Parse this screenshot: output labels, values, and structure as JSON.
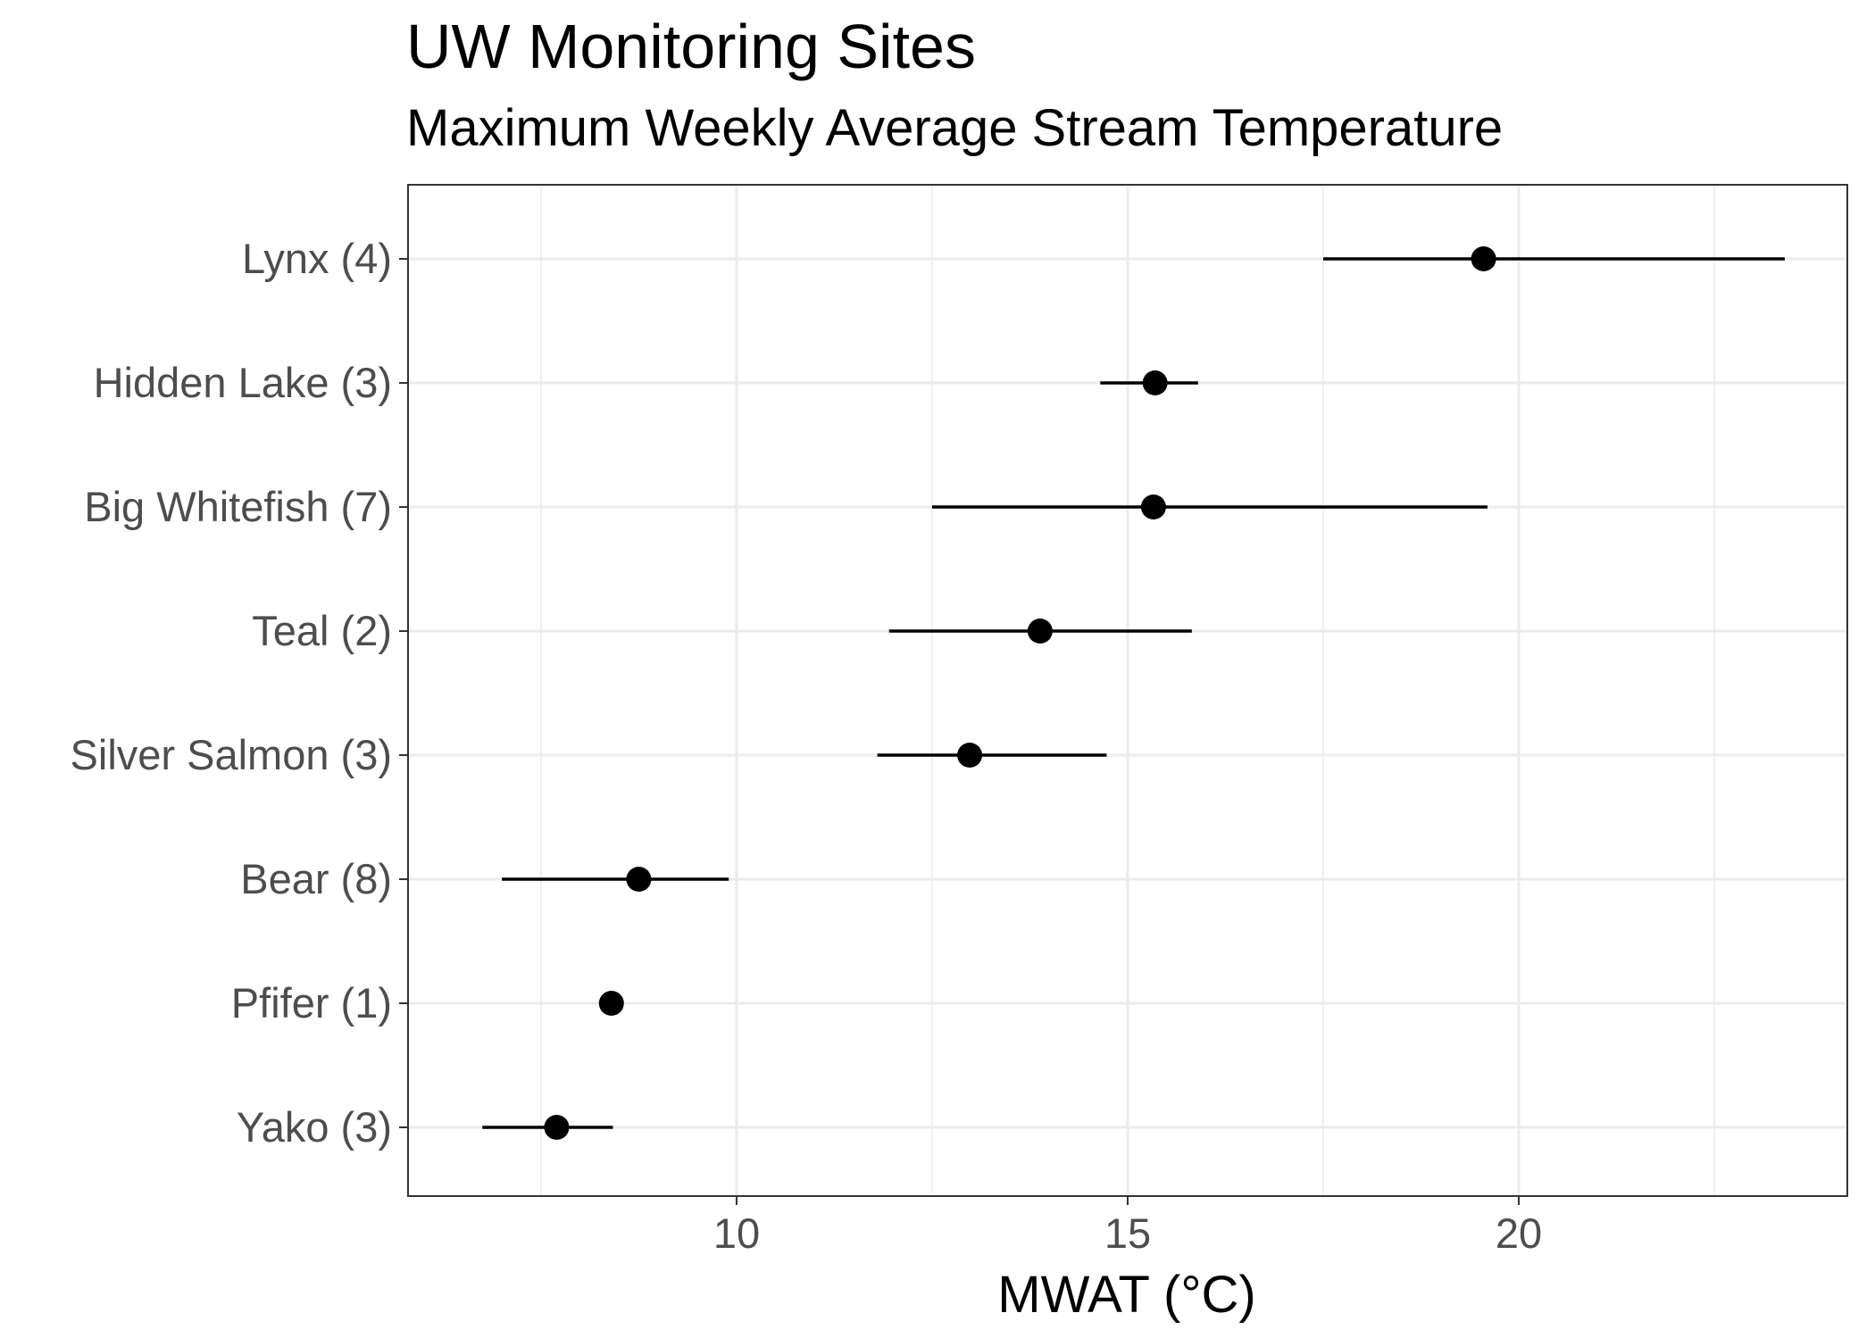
{
  "chart_data": {
    "type": "scatter",
    "title": "UW Monitoring Sites",
    "subtitle": "Maximum Weekly Average Stream Temperature",
    "xlabel": "MWAT (°C)",
    "ylabel": "",
    "xlim": [
      5.8,
      24.2
    ],
    "x_ticks": [
      10,
      15,
      20
    ],
    "grid": true,
    "legend": "none",
    "categories": [
      "Lynx (4)",
      "Hidden Lake (3)",
      "Big Whitefish (7)",
      "Teal (2)",
      "Silver Salmon (3)",
      "Bear (8)",
      "Pfifer (1)",
      "Yako (3)"
    ],
    "points": [
      {
        "label": "Lynx (4)",
        "x": 19.55,
        "low": 17.5,
        "high": 23.4
      },
      {
        "label": "Hidden Lake (3)",
        "x": 15.35,
        "low": 14.65,
        "high": 15.9
      },
      {
        "label": "Big Whitefish (7)",
        "x": 15.33,
        "low": 12.5,
        "high": 19.6
      },
      {
        "label": "Teal (2)",
        "x": 13.88,
        "low": 11.95,
        "high": 15.82
      },
      {
        "label": "Silver Salmon (3)",
        "x": 12.98,
        "low": 11.8,
        "high": 14.73
      },
      {
        "label": "Bear (8)",
        "x": 8.75,
        "low": 7.0,
        "high": 9.9
      },
      {
        "label": "Pfifer (1)",
        "x": 8.4,
        "low": 8.4,
        "high": 8.4
      },
      {
        "label": "Yako (3)",
        "x": 7.7,
        "low": 6.75,
        "high": 8.42
      }
    ],
    "colors": {
      "point": "#000000",
      "grid": "#ebebeb",
      "panel_border": "#333333",
      "tick_text": "#4d4d4d"
    }
  }
}
